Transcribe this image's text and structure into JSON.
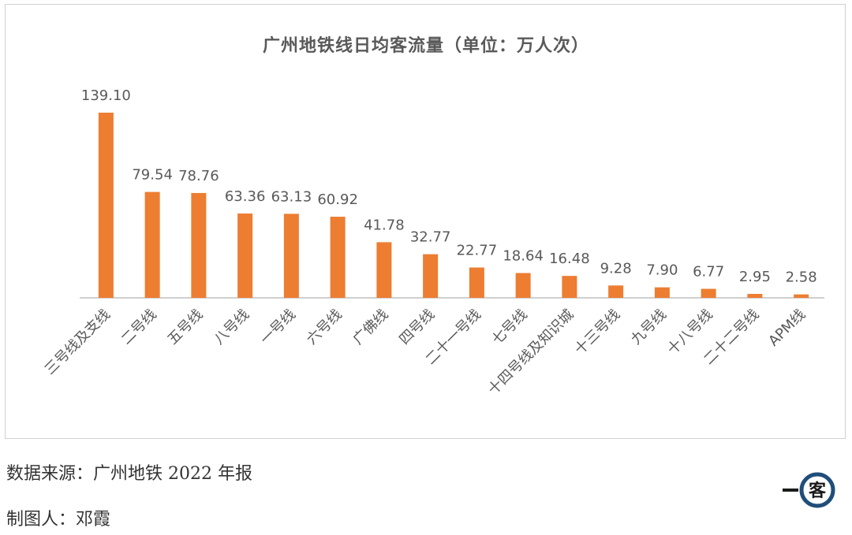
{
  "chart_data": {
    "type": "bar",
    "title": "广州地铁线日均客流量（单位：万人次）",
    "categories": [
      "三号线及支线",
      "二号线",
      "五号线",
      "八号线",
      "一号线",
      "六号线",
      "广佛线",
      "四号线",
      "二十一号线",
      "七号线",
      "十四号线及知识城",
      "十三号线",
      "九号线",
      "十八号线",
      "二十二号线",
      "APM线"
    ],
    "values": [
      139.1,
      79.54,
      78.76,
      63.36,
      63.13,
      60.92,
      41.78,
      32.77,
      22.77,
      18.64,
      16.48,
      9.28,
      7.9,
      6.77,
      2.95,
      2.58
    ],
    "value_labels": [
      "139.10",
      "79.54",
      "78.76",
      "63.36",
      "63.13",
      "60.92",
      "41.78",
      "32.77",
      "22.77",
      "18.64",
      "16.48",
      "9.28",
      "7.90",
      "6.77",
      "2.95",
      "2.58"
    ],
    "bar_color": "#ED7D31",
    "ylim": [
      0,
      139.1
    ],
    "grid": false,
    "legend": "none"
  },
  "footer": {
    "source": "数据来源：广州地铁 2022 年报",
    "author": "制图人：邓霞"
  },
  "logo": {
    "text": "一客"
  }
}
